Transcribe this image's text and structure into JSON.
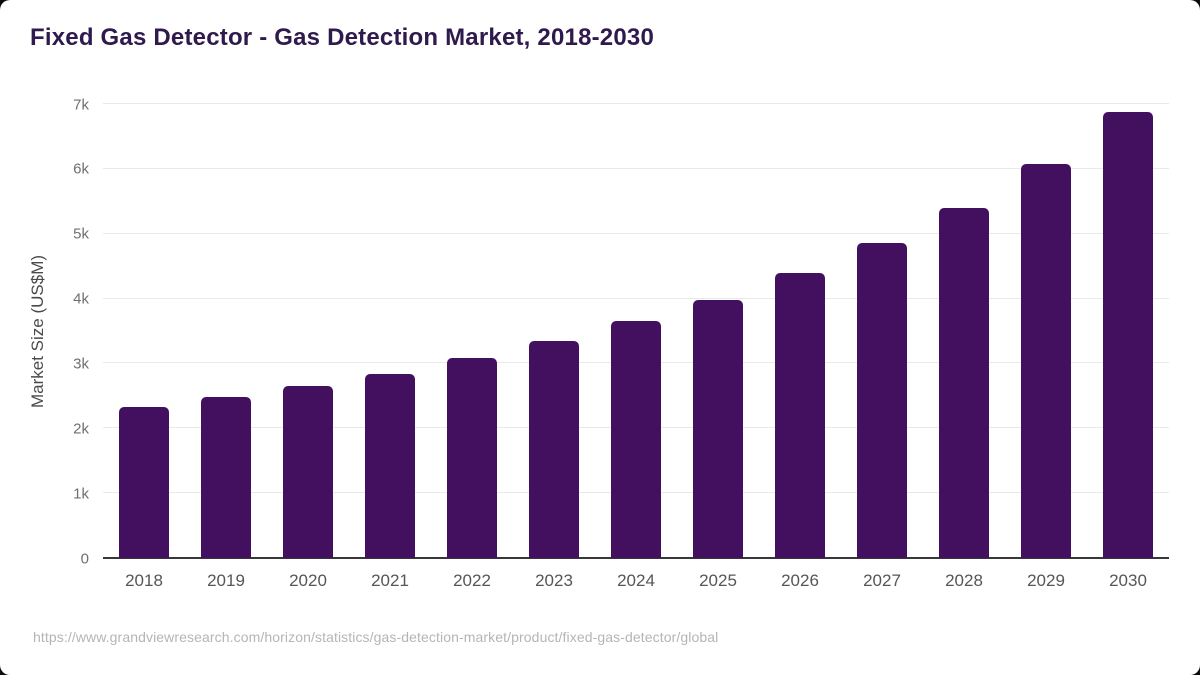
{
  "header": {
    "title": "Fixed Gas Detector - Gas Detection Market, 2018-2030"
  },
  "chart_data": {
    "type": "bar",
    "title": "Fixed Gas Detector - Gas Detection Market, 2018-2030",
    "categories": [
      "2018",
      "2019",
      "2020",
      "2021",
      "2022",
      "2023",
      "2024",
      "2025",
      "2026",
      "2027",
      "2028",
      "2029",
      "2030"
    ],
    "values": [
      2330,
      2480,
      2650,
      2840,
      3090,
      3340,
      3650,
      3980,
      4390,
      4850,
      5400,
      6080,
      6880
    ],
    "xlabel": "",
    "ylabel": "Market Size (US$M)",
    "ylim": [
      0,
      7000
    ],
    "ytick_step": 1000,
    "ytick_labels": [
      "0",
      "1k",
      "2k",
      "3k",
      "4k",
      "5k",
      "6k",
      "7k"
    ],
    "grid": true,
    "legend": "none",
    "bar_color": "#431060"
  },
  "colors": {
    "title_text": "#2f1a4d",
    "bar_fill": "#431060",
    "gridline": "#e9e9e9",
    "axis_line": "#37373b",
    "y_tick_text": "#707070",
    "x_tick_text": "#565656",
    "footer_text": "#b5b5b5",
    "card_background": "#ffffff"
  },
  "footer": {
    "source_url": "https://www.grandviewresearch.com/horizon/statistics/gas-detection-market/product/fixed-gas-detector/global"
  }
}
